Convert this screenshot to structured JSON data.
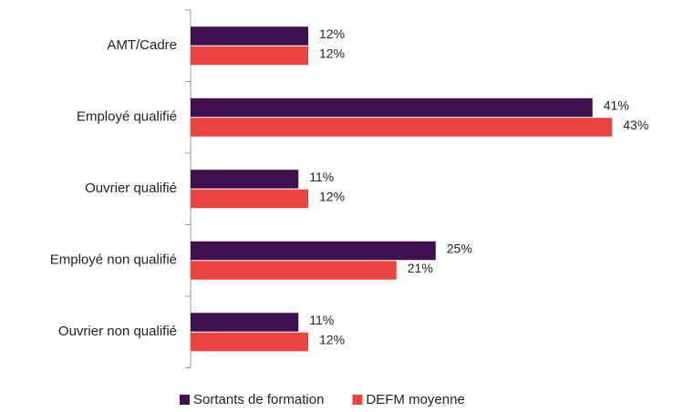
{
  "chart_data": {
    "type": "bar",
    "orientation": "horizontal",
    "categories": [
      "AMT/Cadre",
      "Employé qualifié",
      "Ouvrier qualifié",
      "Employé non qualifié",
      "Ouvrier non qualifié"
    ],
    "series": [
      {
        "name": "Sortants de formation",
        "color": "#40104f",
        "values": [
          12,
          41,
          11,
          25,
          11
        ],
        "value_labels": [
          "12%",
          "41%",
          "11%",
          "25%",
          "11%"
        ]
      },
      {
        "name": "DEFM moyenne",
        "color": "#e9443f",
        "values": [
          12,
          43,
          12,
          21,
          12
        ],
        "value_labels": [
          "12%",
          "43%",
          "12%",
          "21%",
          "12%"
        ]
      }
    ],
    "legend": "bottom"
  }
}
